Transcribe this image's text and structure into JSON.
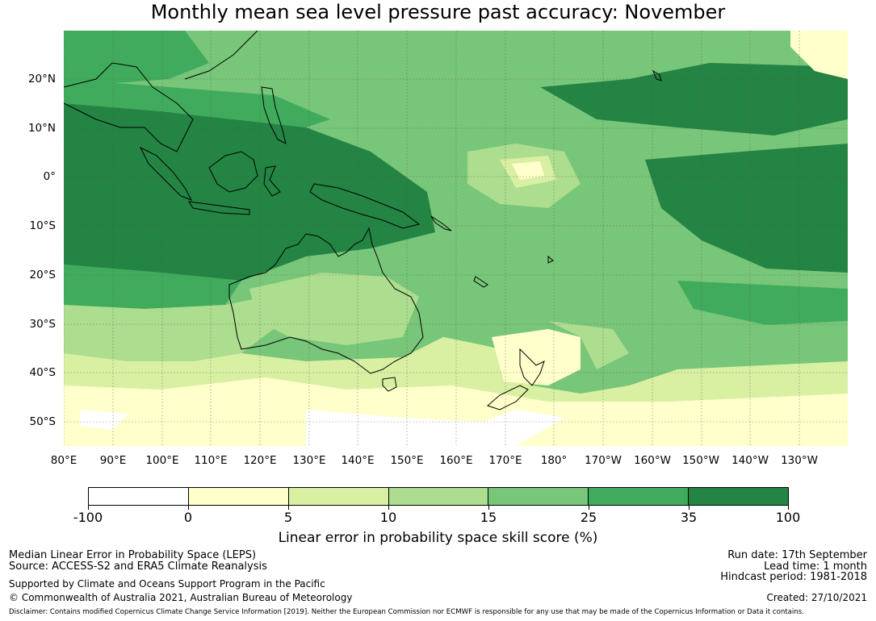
{
  "title": "Monthly mean sea level pressure past accuracy: November",
  "map": {
    "lat_labels": [
      "20°N",
      "10°N",
      "0°",
      "10°S",
      "20°S",
      "30°S",
      "40°S",
      "50°S"
    ],
    "lon_labels": [
      "80°E",
      "90°E",
      "100°E",
      "110°E",
      "120°E",
      "130°E",
      "140°E",
      "150°E",
      "160°E",
      "170°E",
      "180°",
      "170°W",
      "160°W",
      "150°W",
      "140°W",
      "130°W"
    ],
    "lat_range": [
      -55,
      30
    ],
    "lon_range": [
      80,
      240
    ]
  },
  "colorbar": {
    "ticks": [
      "-100",
      "0",
      "5",
      "10",
      "15",
      "25",
      "35",
      "100"
    ],
    "colors": [
      "#ffffff",
      "#ffffcc",
      "#d9f0a3",
      "#addd8e",
      "#78c679",
      "#41ab5d",
      "#238443"
    ],
    "label": "Linear error in probability space skill score (%)"
  },
  "footer": {
    "method": "Median Linear Error in Probability Space (LEPS)",
    "source": "Source: ACCESS-S2 and ERA5 Climate Reanalysis",
    "support": "Supported by Climate and Oceans Support Program in the Pacific",
    "copyright": "© Commonwealth of Australia 2021, Australian Bureau of Meteorology",
    "run_date": "Run date: 17th September",
    "lead_time": "Lead time: 1 month",
    "hindcast": "Hindcast period: 1981-2018",
    "created": "Created: 27/10/2021",
    "disclaimer": "Disclaimer: Contains modified Copernicus Climate Change Service Information [2019]. Neither the European Commission nor ECMWF is responsible for any use that may be made of the Copernicus Information or Data it contains."
  }
}
